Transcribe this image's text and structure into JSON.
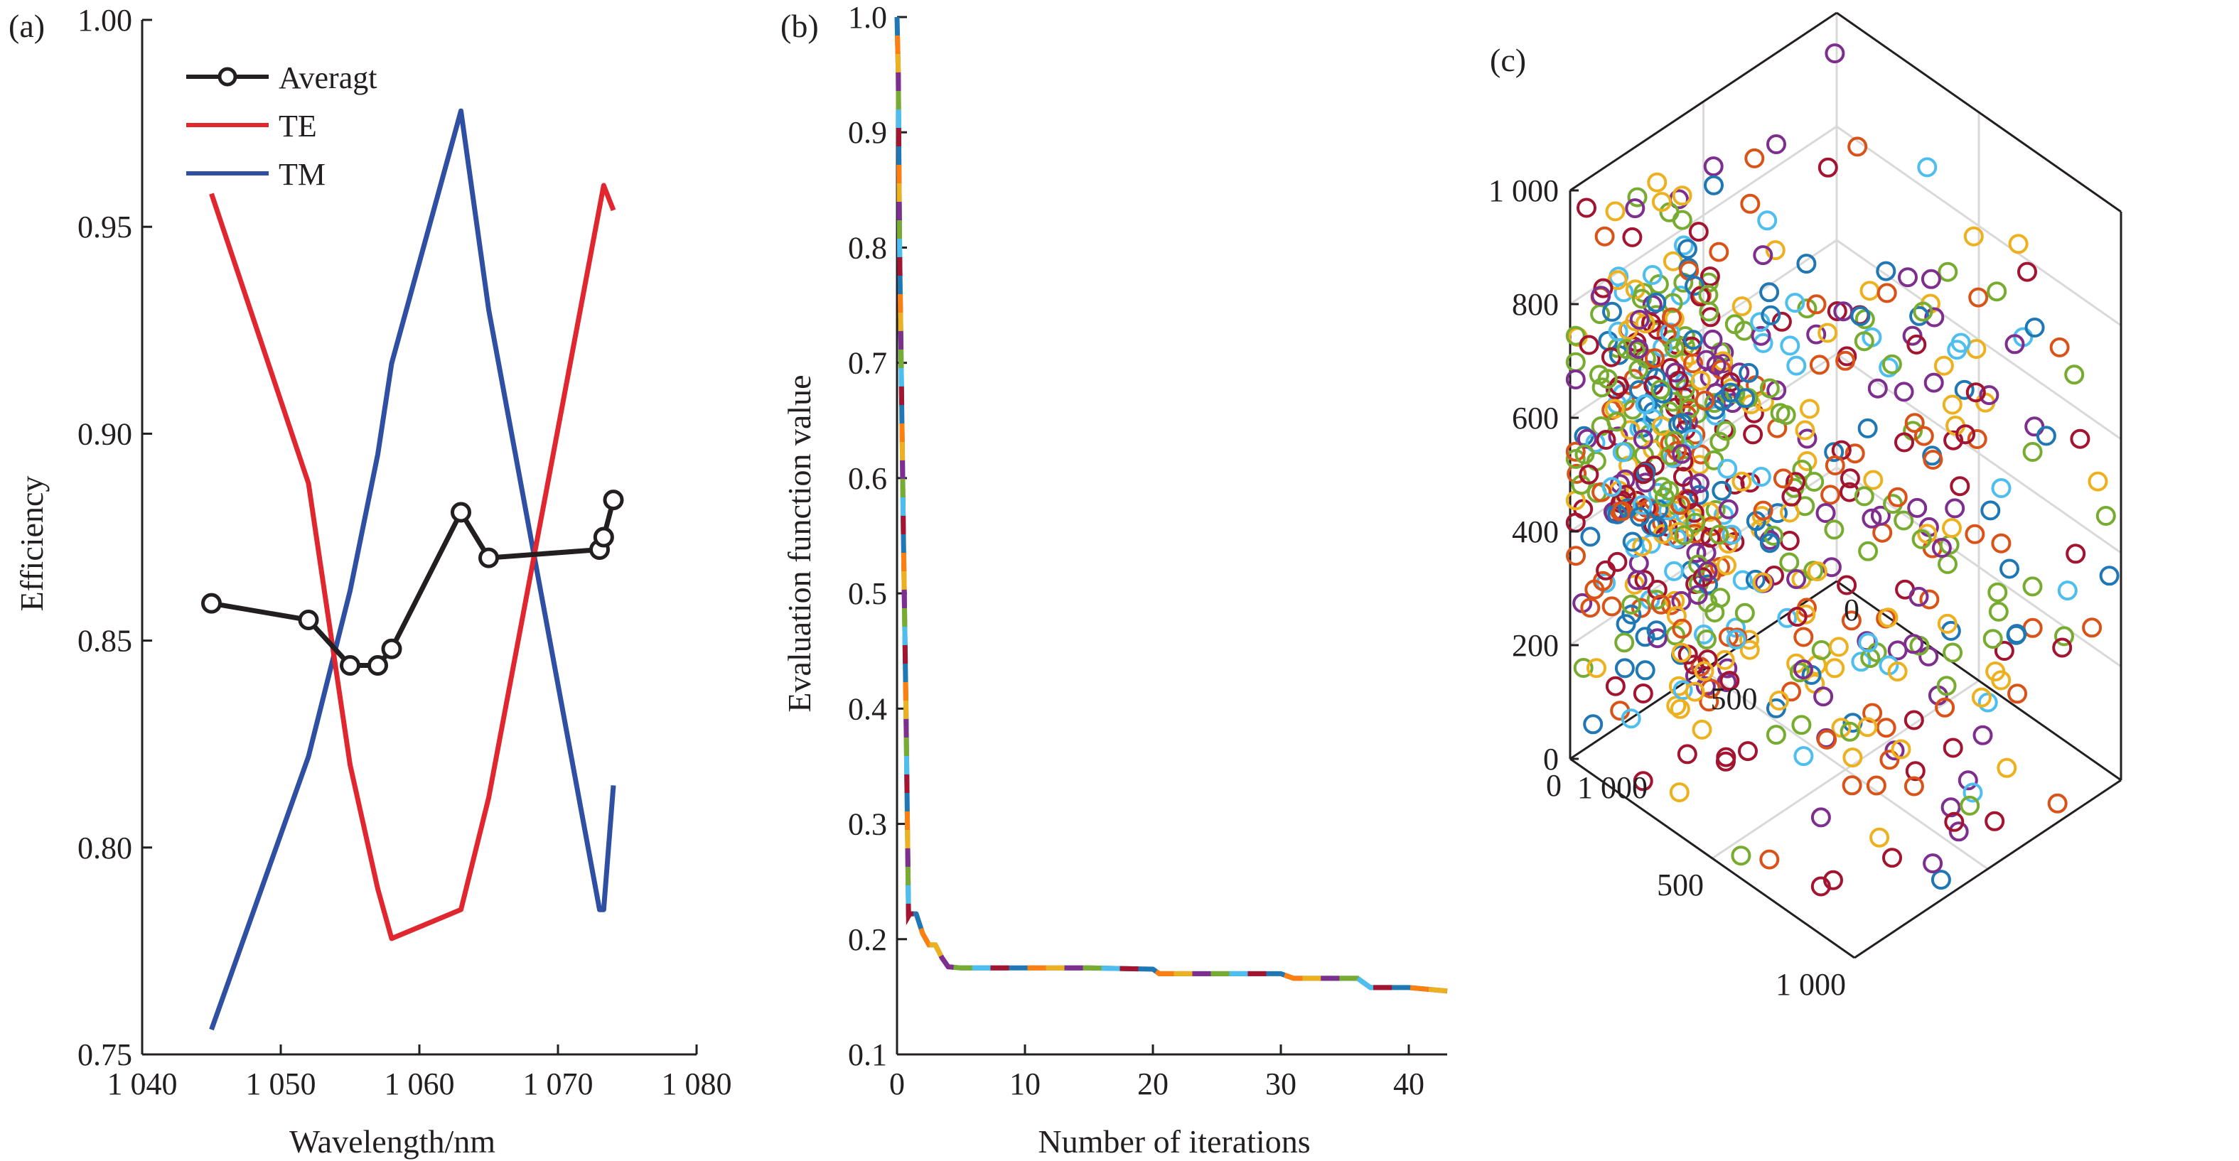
{
  "chart_data": [
    {
      "panel": "(a)",
      "type": "line",
      "xlabel": "Wavelength/nm",
      "ylabel": "Efficiency",
      "xlim": [
        1040,
        1080
      ],
      "ylim": [
        0.75,
        1.0
      ],
      "xticks": [
        1040,
        1050,
        1060,
        1070,
        1080
      ],
      "xtick_labels": [
        "1 040",
        "1 050",
        "1 060",
        "1 070",
        "1 080"
      ],
      "yticks": [
        0.75,
        0.8,
        0.85,
        0.9,
        0.95,
        1.0
      ],
      "ytick_labels": [
        "0.75",
        "0.80",
        "0.85",
        "0.90",
        "0.95",
        "1.00"
      ],
      "legend_position": "top-left",
      "series": [
        {
          "name": "Averagt",
          "color": "#231f20",
          "marker": "circle",
          "x": [
            1045,
            1052,
            1055,
            1057,
            1058,
            1063,
            1065,
            1073,
            1073.3,
            1074
          ],
          "y": [
            0.859,
            0.855,
            0.844,
            0.844,
            0.848,
            0.881,
            0.87,
            0.872,
            0.875,
            0.884
          ]
        },
        {
          "name": "TE",
          "color": "#e0262e",
          "marker": "none",
          "x": [
            1045,
            1052,
            1055,
            1057,
            1058,
            1063,
            1065,
            1073.3,
            1074
          ],
          "y": [
            0.958,
            0.888,
            0.82,
            0.79,
            0.778,
            0.785,
            0.812,
            0.96,
            0.954
          ]
        },
        {
          "name": "TM",
          "color": "#2f4fa2",
          "marker": "none",
          "x": [
            1045,
            1052,
            1055,
            1057,
            1058,
            1063,
            1065,
            1073,
            1073.3,
            1074
          ],
          "y": [
            0.756,
            0.822,
            0.862,
            0.895,
            0.917,
            0.978,
            0.93,
            0.785,
            0.785,
            0.815
          ]
        }
      ]
    },
    {
      "panel": "(b)",
      "type": "line",
      "xlabel": "Number of iterations",
      "ylabel": "Evaluation function value",
      "xlim": [
        0,
        43
      ],
      "ylim": [
        0.1,
        1.0
      ],
      "xticks": [
        0,
        10,
        20,
        30,
        40
      ],
      "xtick_labels": [
        "0",
        "10",
        "20",
        "30",
        "40"
      ],
      "yticks": [
        0.1,
        0.2,
        0.3,
        0.4,
        0.5,
        0.6,
        0.7,
        0.8,
        0.9,
        1.0
      ],
      "ytick_labels": [
        "0.1",
        "0.2",
        "0.3",
        "0.4",
        "0.5",
        "0.6",
        "0.7",
        "0.8",
        "0.9",
        "1.0"
      ],
      "segment_colors": [
        "#1f77b4",
        "#ff7f0e",
        "#edb120",
        "#7e2f8e",
        "#77ac30",
        "#4dbeee",
        "#a2142f"
      ],
      "series": [
        {
          "x": [
            0,
            0.1,
            0.2,
            0.3,
            0.5,
            0.7,
            0.9,
            1.0,
            1.5,
            2.0,
            2.5,
            3.0,
            3.5,
            4.0,
            5.0,
            5.5,
            10,
            15,
            20,
            20.5,
            25,
            30,
            31,
            35,
            36,
            37,
            40,
            43
          ],
          "y": [
            1.0,
            0.95,
            0.8,
            0.72,
            0.55,
            0.4,
            0.22,
            0.222,
            0.222,
            0.205,
            0.195,
            0.195,
            0.184,
            0.176,
            0.175,
            0.175,
            0.175,
            0.175,
            0.174,
            0.17,
            0.17,
            0.17,
            0.166,
            0.166,
            0.166,
            0.158,
            0.158,
            0.155
          ]
        }
      ]
    },
    {
      "panel": "(c)",
      "type": "scatter",
      "view": "3d",
      "xlim": [
        0,
        1000
      ],
      "ylim": [
        0,
        1000
      ],
      "zlim": [
        0,
        1000
      ],
      "zticks": [
        0,
        200,
        400,
        600,
        800,
        1000
      ],
      "ztick_labels": [
        "0",
        "200",
        "400",
        "600",
        "800",
        "1 000"
      ],
      "xticks": [
        0,
        500,
        1000
      ],
      "xtick_labels": [
        "0",
        "500",
        "1 000"
      ],
      "yticks": [
        0,
        500,
        1000
      ],
      "ytick_labels": [
        "0",
        "500",
        "1 000"
      ],
      "grid": true,
      "marker": "open-circle",
      "point_count": 650,
      "point_colors": [
        "#1f77b4",
        "#d95319",
        "#edb120",
        "#7e2f8e",
        "#77ac30",
        "#4dbeee",
        "#a2142f"
      ]
    }
  ]
}
